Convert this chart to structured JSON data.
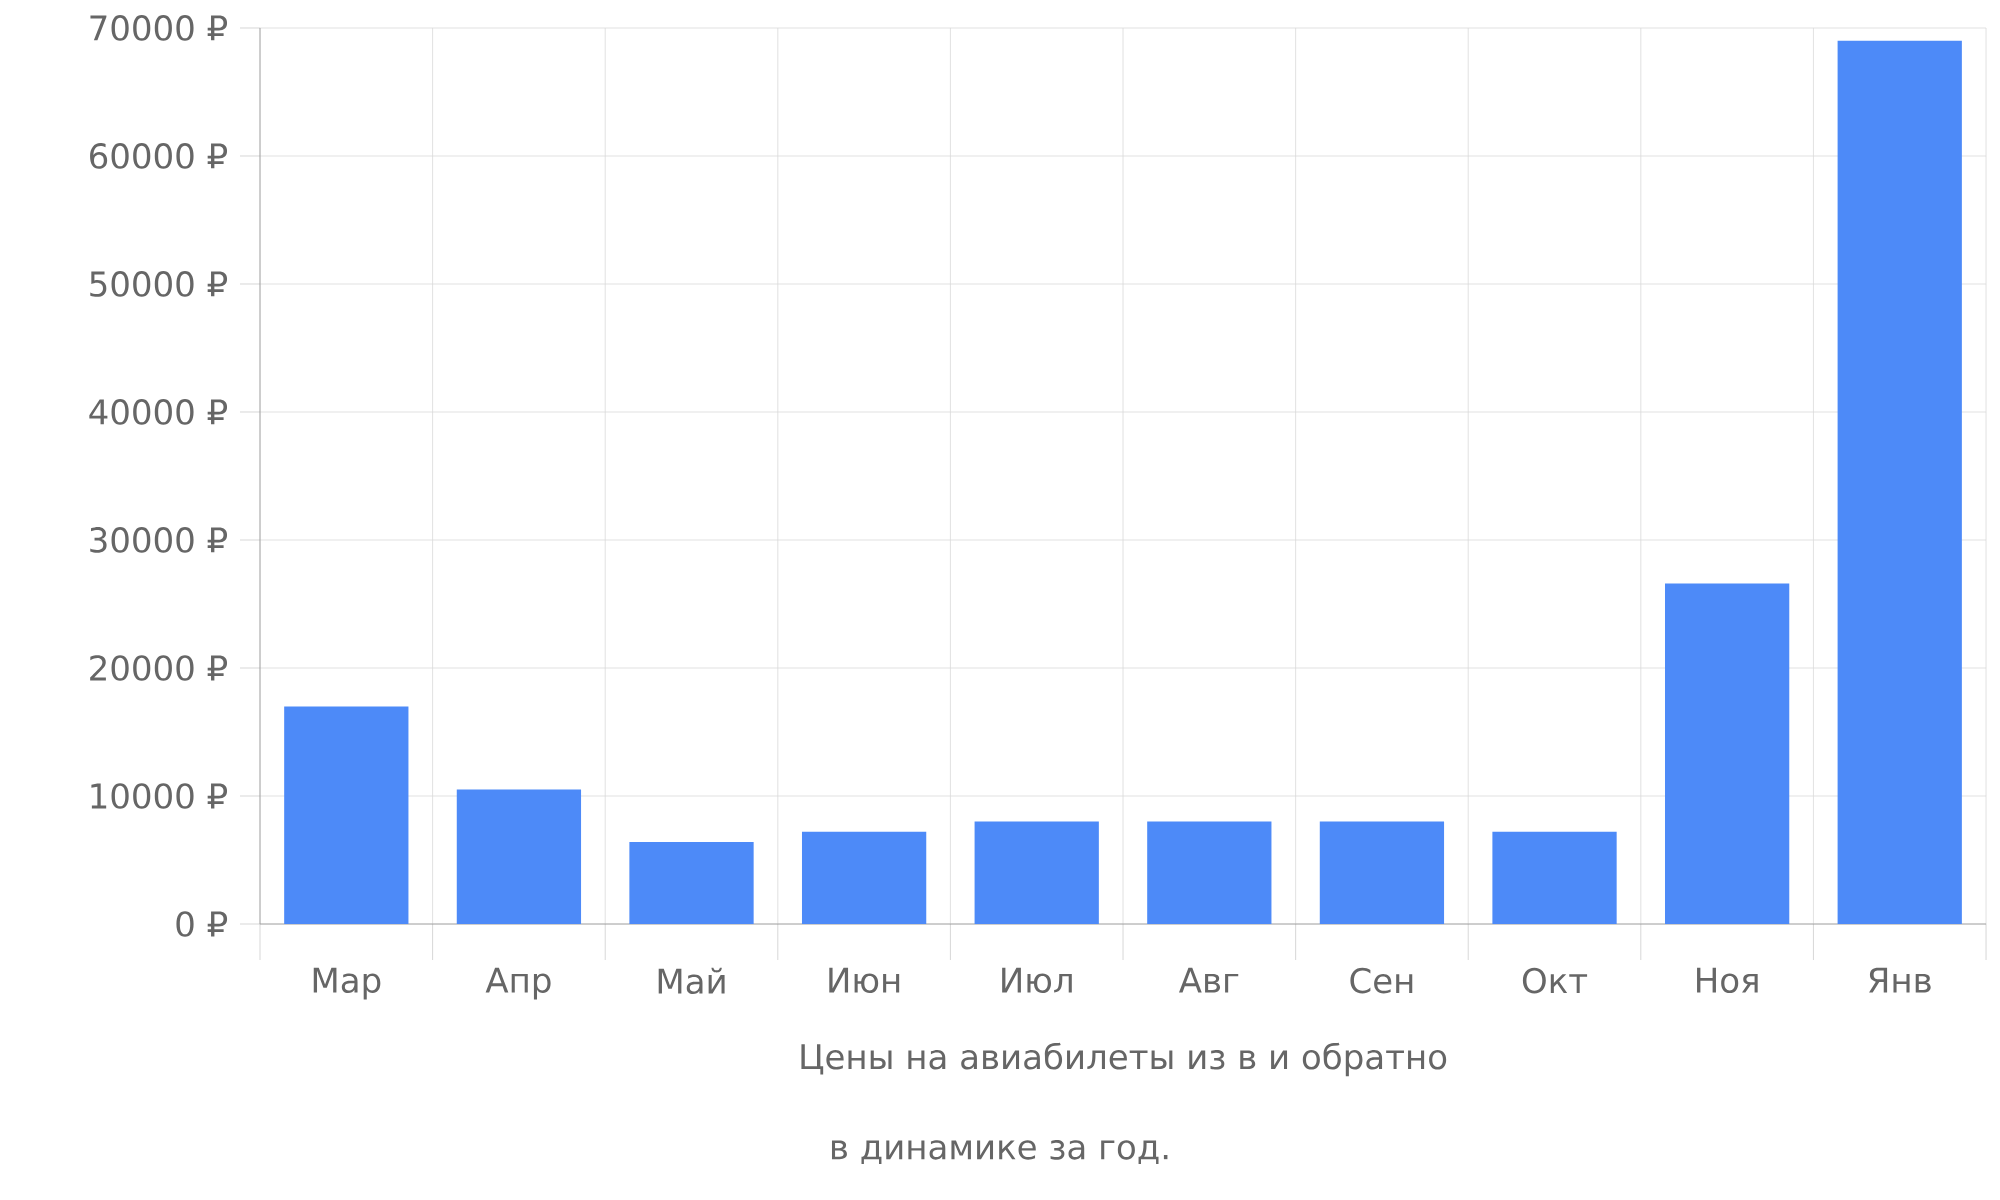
{
  "chart_data": {
    "type": "bar",
    "categories": [
      "Мар",
      "Апр",
      "Май",
      "Июн",
      "Июл",
      "Авг",
      "Сен",
      "Окт",
      "Ноя",
      "Янв"
    ],
    "values": [
      17000,
      10500,
      6400,
      7200,
      8000,
      8000,
      8000,
      7200,
      26600,
      69000
    ],
    "color": "#4d8af8",
    "ylim": [
      0,
      70000
    ],
    "yticks": [
      {
        "value": 0,
        "label": "0 ₽"
      },
      {
        "value": 10000,
        "label": "10000 ₽"
      },
      {
        "value": 20000,
        "label": "20000 ₽"
      },
      {
        "value": 30000,
        "label": "30000 ₽"
      },
      {
        "value": 40000,
        "label": "40000 ₽"
      },
      {
        "value": 50000,
        "label": "50000 ₽"
      },
      {
        "value": 60000,
        "label": "60000 ₽"
      },
      {
        "value": 70000,
        "label": "70000 ₽"
      }
    ],
    "grid": true,
    "xlabel": "Цены на авиабилеты из  в  и обратно",
    "annotations": [
      "в динамике за год."
    ]
  }
}
